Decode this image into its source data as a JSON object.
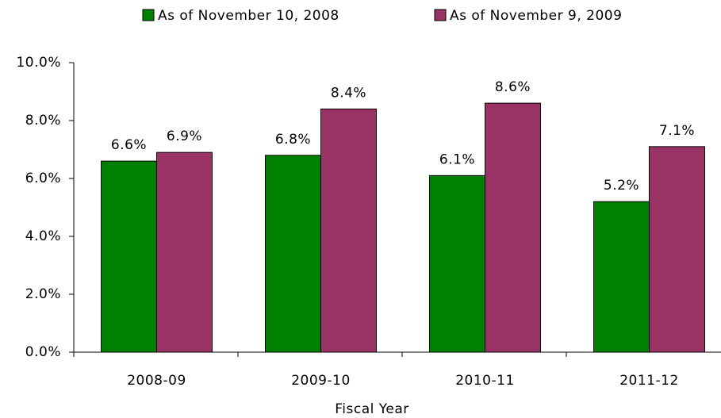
{
  "chart_data": {
    "type": "bar",
    "x_label": "Fiscal Year",
    "categories": [
      "2008-09",
      "2009-10",
      "2010-11",
      "2011-12"
    ],
    "series": [
      {
        "name": "As of November 10, 2008",
        "color": "#008000",
        "values": [
          6.6,
          6.8,
          6.1,
          5.2
        ],
        "value_labels": [
          "6.6%",
          "6.8%",
          "6.1%",
          "5.2%"
        ]
      },
      {
        "name": "As of November 9, 2009",
        "color": "#993366",
        "values": [
          6.9,
          8.4,
          8.6,
          7.1
        ],
        "value_labels": [
          "6.9%",
          "8.4%",
          "8.6%",
          "7.1%"
        ]
      }
    ],
    "ylim": [
      0,
      10
    ],
    "yticks": [
      {
        "value": 0,
        "label": "0.0%"
      },
      {
        "value": 2,
        "label": "2.0%"
      },
      {
        "value": 4,
        "label": "4.0%"
      },
      {
        "value": 6,
        "label": "6.0%"
      },
      {
        "value": 8,
        "label": "8.0%"
      },
      {
        "value": 10,
        "label": "10.0%"
      }
    ],
    "grid": false,
    "legend": "top"
  }
}
